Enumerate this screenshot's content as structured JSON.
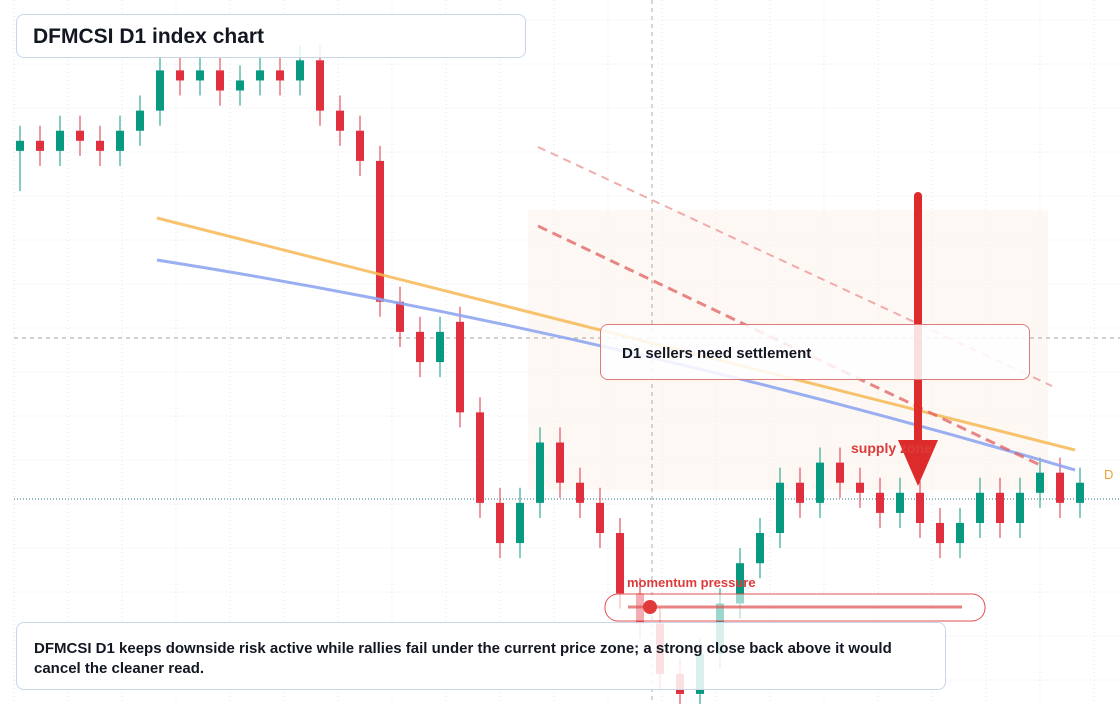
{
  "chart_data": {
    "type": "candlestick",
    "title": "DFMCSI D1 index chart",
    "open": [
      55,
      56,
      55,
      57,
      56,
      55,
      57,
      59,
      63,
      62,
      63,
      61,
      62,
      63,
      62,
      64,
      59,
      57,
      54,
      40,
      37,
      34,
      38,
      29,
      20,
      16,
      20,
      26,
      22,
      20,
      17,
      11,
      8,
      3,
      1,
      5,
      10,
      14,
      17,
      22,
      20,
      24,
      22,
      21,
      19,
      21,
      18,
      16,
      18,
      21,
      18,
      21,
      23,
      20
    ],
    "high": [
      57.5,
      57.5,
      58.5,
      58.5,
      57.5,
      58.5,
      60.5,
      64.5,
      64.5,
      64.5,
      64.5,
      63.5,
      64.5,
      64.5,
      65.5,
      65.5,
      60.5,
      58.5,
      55.5,
      41.5,
      38.5,
      38.5,
      39.5,
      30.5,
      21.5,
      21.5,
      27.5,
      27.5,
      23.5,
      21.5,
      18.5,
      12.5,
      9.5,
      4.5,
      6.5,
      11.5,
      15.5,
      18.5,
      23.5,
      23.5,
      25.5,
      25.5,
      23.5,
      22.5,
      22.5,
      22.5,
      19.5,
      19.5,
      22.5,
      22.5,
      22.5,
      24.5,
      24.5,
      23.5
    ],
    "low": [
      51,
      53.5,
      53.5,
      54.5,
      53.5,
      53.5,
      55.5,
      57.5,
      60.5,
      60.5,
      59.5,
      59.5,
      60.5,
      60.5,
      60.5,
      57.5,
      55.5,
      52.5,
      38.5,
      35.5,
      32.5,
      32.5,
      27.5,
      18.5,
      14.5,
      14.5,
      18.5,
      20.5,
      18.5,
      15.5,
      9.5,
      6.5,
      1.5,
      0,
      0,
      3.5,
      8.5,
      12.5,
      15.5,
      18.5,
      18.5,
      20.5,
      19.5,
      17.5,
      17.5,
      16.5,
      14.5,
      14.5,
      16.5,
      16.5,
      16.5,
      19.5,
      18.5,
      18.5
    ],
    "close": [
      56,
      55,
      57,
      56,
      55,
      57,
      59,
      63,
      62,
      63,
      61,
      62,
      63,
      62,
      64,
      59,
      57,
      54,
      40,
      37,
      34,
      37,
      29,
      20,
      16,
      20,
      26,
      22,
      20,
      17,
      11,
      8,
      3,
      1,
      5,
      10,
      14,
      17,
      22,
      20,
      24,
      22,
      21,
      19,
      21,
      18,
      16,
      18,
      21,
      18,
      21,
      23,
      20,
      22
    ],
    "up_color": "#089981",
    "down_color": "#e0303f",
    "ylim": [
      0,
      70
    ],
    "annotations": {
      "callout": "D1 sellers need settlement",
      "supply": "supply zone",
      "momentum": "momentum pressure",
      "edge_tag": "D",
      "note": "DFMCSI D1 keeps downside risk active while rallies fail under the current price zone; a strong close back above it would cancel the cleaner read."
    }
  }
}
